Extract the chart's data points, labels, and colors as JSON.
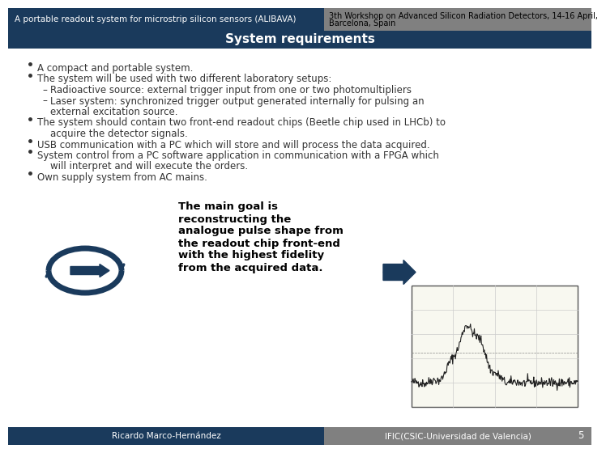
{
  "header_left_text": "A portable readout system for microstrip silicon sensors (ALIBAVA)",
  "header_right_text": "3th Workshop on Advanced Silicon Radiation Detectors, 14-16 April,\nBarcelona, Spain",
  "title_text": "System requirements",
  "header_left_bg": "#1a3a5c",
  "header_right_bg": "#808080",
  "title_bg": "#1a3a5c",
  "footer_left_bg": "#1a3a5c",
  "footer_right_bg": "#808080",
  "footer_left_text": "Ricardo Marco-Hernández",
  "footer_right_text": "IFIC(CSIC-Universidad de Valencia)",
  "footer_page": "5",
  "body_bg": "#ffffff",
  "bullet_points": [
    {
      "level": 1,
      "text": "A compact and portable system."
    },
    {
      "level": 1,
      "text": "The system will be used with two different laboratory setups:"
    },
    {
      "level": 2,
      "text": "Radioactive source: external trigger input from one or two photomultipliers"
    },
    {
      "level": 2,
      "text": "Laser system: synchronized trigger output generated internally for pulsing an\n        external excitation source."
    },
    {
      "level": 1,
      "text": "The system should contain two front-end readout chips (Beetle chip used in LHCb) to\n   acquire the detector signals."
    },
    {
      "level": 1,
      "text": "USB communication with a PC which will store and will process the data acquired."
    },
    {
      "level": 1,
      "text": "System control from a PC software application in communication with a FPGA which\n   will interpret and will execute the orders."
    },
    {
      "level": 1,
      "text": "Own supply system from AC mains."
    }
  ],
  "goal_text": "The main goal is\nreconstructing the\nanalogue pulse shape from\nthe readout chip front-end\nwith the highest fidelity\nfrom the acquired data.",
  "text_color": "#1a1a1a",
  "goal_text_color": "#000000",
  "title_text_color": "#ffffff",
  "header_text_color": "#ffffff",
  "header_right_text_color": "#000000",
  "footer_text_color": "#ffffff",
  "bullet_color": "#333333",
  "body_font_size": 8.5,
  "title_font_size": 11,
  "header_font_size": 7.5,
  "footer_font_size": 7.5,
  "goal_font_size": 9.5
}
